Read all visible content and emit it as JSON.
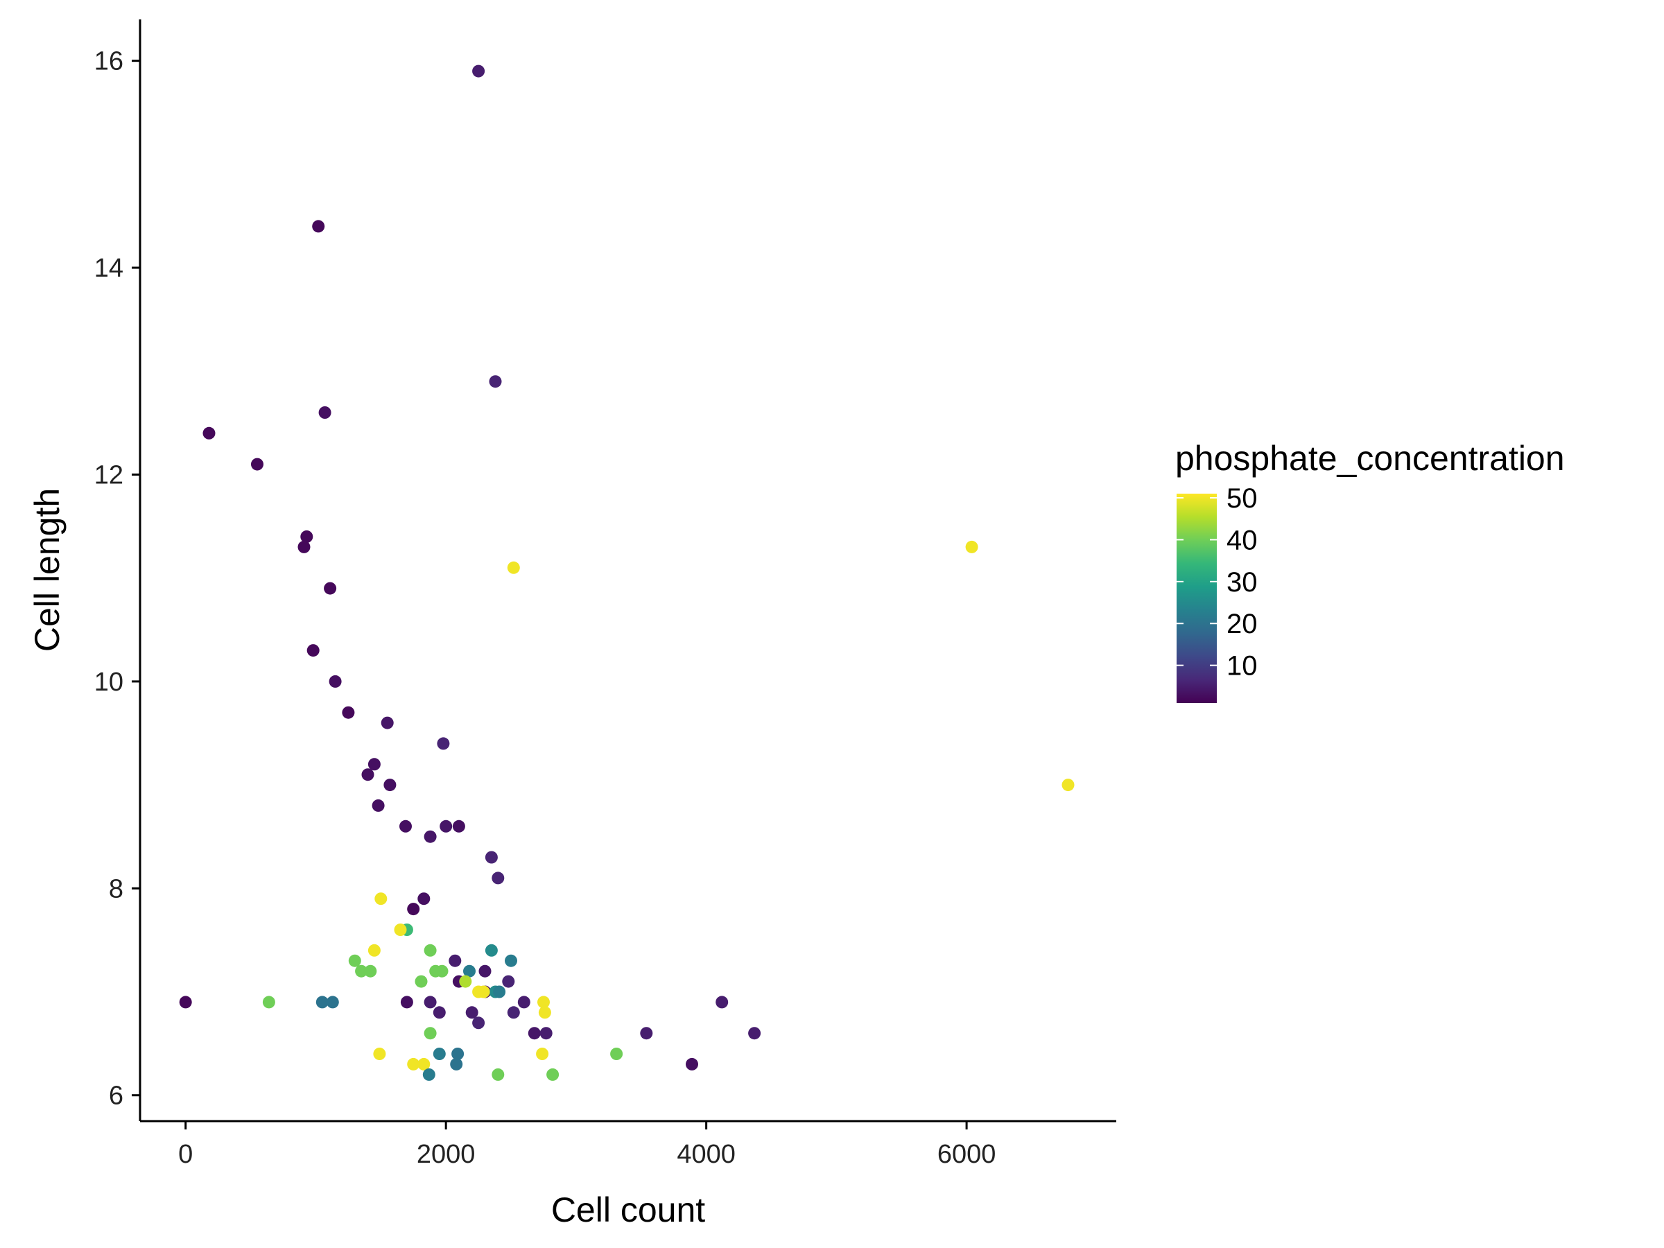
{
  "chart_data": {
    "type": "scatter",
    "xlabel": "Cell count",
    "ylabel": "Cell length",
    "xlim": [
      -350,
      7150
    ],
    "ylim": [
      5.75,
      16.4
    ],
    "x_ticks": [
      0,
      2000,
      4000,
      6000
    ],
    "x_tick_labels": [
      "0",
      "2000",
      "4000",
      "6000"
    ],
    "y_ticks": [
      6,
      8,
      10,
      12,
      14,
      16
    ],
    "y_tick_labels": [
      "6",
      "8",
      "10",
      "12",
      "14",
      "16"
    ],
    "grid": false,
    "legend": {
      "title": "phosphate_concentration",
      "placement": "right",
      "type": "colorbar",
      "range": [
        1,
        51
      ],
      "ticks": [
        10,
        20,
        30,
        40,
        50
      ],
      "tick_labels": [
        "10",
        "20",
        "30",
        "40",
        "50"
      ],
      "colormap": [
        "#440154",
        "#482878",
        "#3e4989",
        "#31688e",
        "#26828e",
        "#1f9e89",
        "#35b779",
        "#6ece58",
        "#b5de2b",
        "#fde725"
      ]
    },
    "points": [
      {
        "x": 2250,
        "y": 15.9,
        "c": 5
      },
      {
        "x": 1020,
        "y": 14.4,
        "c": 2
      },
      {
        "x": 2380,
        "y": 12.9,
        "c": 6
      },
      {
        "x": 1070,
        "y": 12.6,
        "c": 3
      },
      {
        "x": 180,
        "y": 12.4,
        "c": 2
      },
      {
        "x": 550,
        "y": 12.1,
        "c": 2
      },
      {
        "x": 6040,
        "y": 11.3,
        "c": 50
      },
      {
        "x": 2520,
        "y": 11.1,
        "c": 50
      },
      {
        "x": 6780,
        "y": 9.0,
        "c": 50
      },
      {
        "x": 0,
        "y": 6.9,
        "c": 2
      },
      {
        "x": 1980,
        "y": 9.4,
        "c": 6
      },
      {
        "x": 1550,
        "y": 9.6,
        "c": 4
      },
      {
        "x": 2350,
        "y": 8.3,
        "c": 6
      },
      {
        "x": 2400,
        "y": 8.1,
        "c": 6
      },
      {
        "x": 2000,
        "y": 8.6,
        "c": 4
      },
      {
        "x": 2100,
        "y": 8.6,
        "c": 3
      },
      {
        "x": 1880,
        "y": 8.5,
        "c": 4
      },
      {
        "x": 1690,
        "y": 8.6,
        "c": 3
      },
      {
        "x": 1830,
        "y": 7.9,
        "c": 3
      },
      {
        "x": 1750,
        "y": 7.8,
        "c": 2
      },
      {
        "x": 1700,
        "y": 7.6,
        "c": 35
      },
      {
        "x": 1880,
        "y": 7.4,
        "c": 40
      },
      {
        "x": 2070,
        "y": 7.3,
        "c": 5
      },
      {
        "x": 2300,
        "y": 7.2,
        "c": 4
      },
      {
        "x": 2350,
        "y": 7.4,
        "c": 25
      },
      {
        "x": 2500,
        "y": 7.3,
        "c": 22
      },
      {
        "x": 2180,
        "y": 7.2,
        "c": 22
      },
      {
        "x": 1920,
        "y": 7.2,
        "c": 40
      },
      {
        "x": 1970,
        "y": 7.2,
        "c": 40
      },
      {
        "x": 1810,
        "y": 7.1,
        "c": 40
      },
      {
        "x": 2100,
        "y": 7.1,
        "c": 3
      },
      {
        "x": 2150,
        "y": 7.1,
        "c": 45
      },
      {
        "x": 2250,
        "y": 7.0,
        "c": 50
      },
      {
        "x": 2300,
        "y": 7.0,
        "c": 3
      },
      {
        "x": 2380,
        "y": 7.0,
        "c": 25
      },
      {
        "x": 2410,
        "y": 7.0,
        "c": 22
      },
      {
        "x": 2480,
        "y": 7.1,
        "c": 6
      },
      {
        "x": 1700,
        "y": 6.9,
        "c": 3
      },
      {
        "x": 1880,
        "y": 6.9,
        "c": 5
      },
      {
        "x": 1950,
        "y": 6.8,
        "c": 5
      },
      {
        "x": 2200,
        "y": 6.8,
        "c": 5
      },
      {
        "x": 2250,
        "y": 6.7,
        "c": 6
      },
      {
        "x": 2520,
        "y": 6.8,
        "c": 6
      },
      {
        "x": 2600,
        "y": 6.9,
        "c": 5
      },
      {
        "x": 2750,
        "y": 6.9,
        "c": 50
      },
      {
        "x": 2760,
        "y": 6.8,
        "c": 50
      },
      {
        "x": 2680,
        "y": 6.6,
        "c": 4
      },
      {
        "x": 2770,
        "y": 6.6,
        "c": 5
      },
      {
        "x": 1880,
        "y": 6.6,
        "c": 40
      },
      {
        "x": 1490,
        "y": 6.4,
        "c": 50
      },
      {
        "x": 1750,
        "y": 6.3,
        "c": 50
      },
      {
        "x": 1830,
        "y": 6.3,
        "c": 50
      },
      {
        "x": 1870,
        "y": 6.2,
        "c": 22
      },
      {
        "x": 1950,
        "y": 6.4,
        "c": 22
      },
      {
        "x": 2090,
        "y": 6.4,
        "c": 20
      },
      {
        "x": 2080,
        "y": 6.3,
        "c": 20
      },
      {
        "x": 2400,
        "y": 6.2,
        "c": 40
      },
      {
        "x": 2740,
        "y": 6.4,
        "c": 50
      },
      {
        "x": 2820,
        "y": 6.2,
        "c": 40
      },
      {
        "x": 3310,
        "y": 6.4,
        "c": 40
      },
      {
        "x": 3540,
        "y": 6.6,
        "c": 5
      },
      {
        "x": 3890,
        "y": 6.3,
        "c": 3
      },
      {
        "x": 4120,
        "y": 6.9,
        "c": 5
      },
      {
        "x": 4370,
        "y": 6.6,
        "c": 5
      },
      {
        "x": 1250,
        "y": 9.7,
        "c": 2
      },
      {
        "x": 1450,
        "y": 9.2,
        "c": 3
      },
      {
        "x": 1570,
        "y": 9.0,
        "c": 3
      },
      {
        "x": 1400,
        "y": 9.1,
        "c": 3
      },
      {
        "x": 1480,
        "y": 8.8,
        "c": 3
      },
      {
        "x": 1110,
        "y": 10.9,
        "c": 2
      },
      {
        "x": 930,
        "y": 11.4,
        "c": 2
      },
      {
        "x": 910,
        "y": 11.3,
        "c": 2
      },
      {
        "x": 1150,
        "y": 10.0,
        "c": 3
      },
      {
        "x": 980,
        "y": 10.3,
        "c": 2
      },
      {
        "x": 2290,
        "y": 7.0,
        "c": 50
      },
      {
        "x": 1300,
        "y": 7.3,
        "c": 40
      },
      {
        "x": 1350,
        "y": 7.2,
        "c": 40
      },
      {
        "x": 1420,
        "y": 7.2,
        "c": 40
      },
      {
        "x": 1050,
        "y": 6.9,
        "c": 20
      },
      {
        "x": 1130,
        "y": 6.9,
        "c": 20
      },
      {
        "x": 640,
        "y": 6.9,
        "c": 40
      },
      {
        "x": 1450,
        "y": 7.4,
        "c": 50
      },
      {
        "x": 1650,
        "y": 7.6,
        "c": 50
      },
      {
        "x": 1500,
        "y": 7.9,
        "c": 50
      }
    ]
  }
}
